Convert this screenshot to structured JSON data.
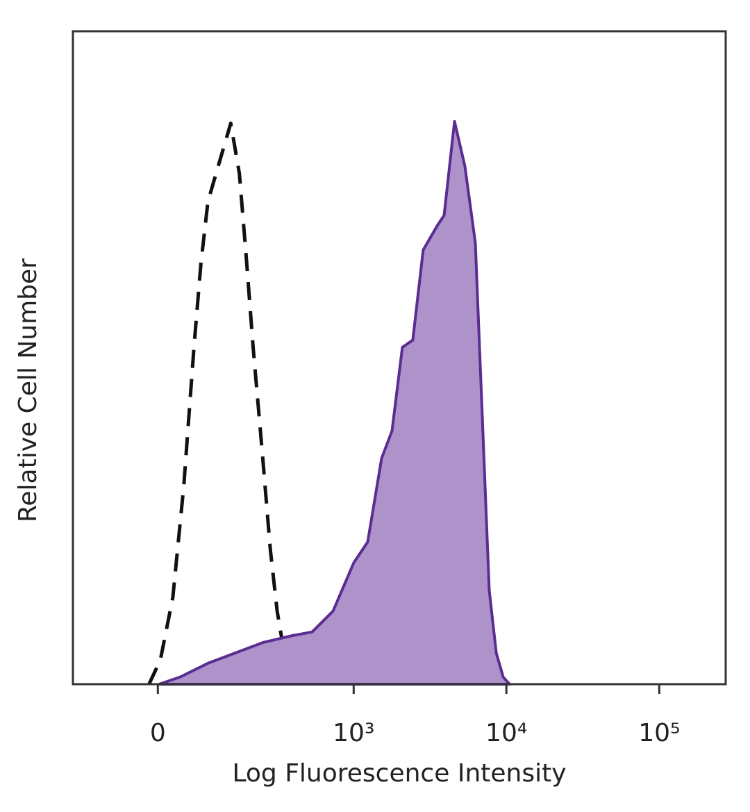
{
  "chart_data": {
    "type": "histogram-overlay",
    "xlabel": "Log Fluorescence Intensity",
    "ylabel": "Relative Cell Number",
    "x_scale": "biexponential",
    "xlim": [
      -174,
      272000
    ],
    "ylim": [
      0,
      100
    ],
    "xticks": [
      0,
      {
        "value": 1000,
        "label": "10³"
      },
      {
        "value": 10000,
        "label": "10⁴"
      },
      {
        "value": 100000,
        "label": "10⁵"
      }
    ],
    "series": [
      {
        "color": "#111111",
        "style": "dashed",
        "filled": false,
        "x": [
          -14,
          4,
          24,
          42,
          60,
          73,
          87,
          109,
          140,
          164,
          185,
          208,
          242,
          276,
          308,
          344,
          384
        ],
        "values": [
          0,
          3.7,
          13.3,
          30.3,
          51.6,
          64.4,
          73.9,
          79.3,
          85.9,
          78.2,
          65.4,
          51.6,
          35.6,
          20.7,
          11.2,
          4.8,
          0
        ]
      },
      {
        "color": "#5b2c91",
        "fill": "#ad93c9",
        "style": "solid",
        "filled": true,
        "x": [
          2,
          36,
          87,
          153,
          247,
          384,
          531,
          731,
          1001,
          1236,
          1525,
          1784,
          2087,
          2442,
          2857,
          3524,
          3913,
          4578,
          5357,
          6268,
          6960,
          7728,
          8584,
          9530,
          10500
        ],
        "values": [
          0,
          1.1,
          3.2,
          4.8,
          6.4,
          7.4,
          8.0,
          11.2,
          18.6,
          21.8,
          34.6,
          38.8,
          51.6,
          52.7,
          66.5,
          70.2,
          71.8,
          86.2,
          79.3,
          67.6,
          41.0,
          14.4,
          4.8,
          1.1,
          0
        ]
      }
    ]
  }
}
